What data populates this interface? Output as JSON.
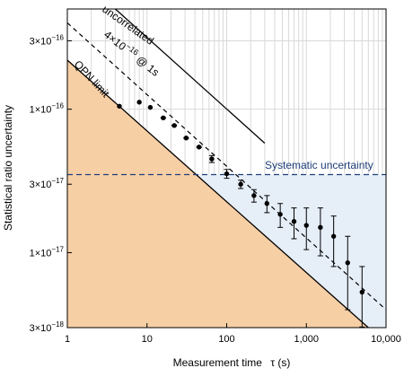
{
  "chart_data": {
    "type": "scatter",
    "x_scale": "log",
    "y_scale": "log",
    "xlim": [
      1,
      10000
    ],
    "ylim": [
      3e-18,
      5e-16
    ],
    "xlabel": "Measurement time",
    "xlabel_symbol": "τ (s)",
    "ylabel": "Statistical ratio uncertainty",
    "x_ticks": [
      {
        "value": 1,
        "label": "1"
      },
      {
        "value": 10,
        "label": "10"
      },
      {
        "value": 100,
        "label": "100"
      },
      {
        "value": 1000,
        "label": "1,000"
      },
      {
        "value": 10000,
        "label": "10,000"
      }
    ],
    "y_ticks": [
      {
        "value": 3e-18,
        "label": "3×10",
        "exp": "−18"
      },
      {
        "value": 1e-17,
        "label": "1×10",
        "exp": "−17"
      },
      {
        "value": 3e-17,
        "label": "3×10",
        "exp": "−17"
      },
      {
        "value": 1e-16,
        "label": "1×10",
        "exp": "−16"
      },
      {
        "value": 3e-16,
        "label": "3×10",
        "exp": "−16"
      }
    ],
    "grid": true,
    "series": [
      {
        "name": "",
        "points": [
          {
            "x": 4.5,
            "y": 1.05e-16,
            "err": 0
          },
          {
            "x": 8,
            "y": 1.12e-16,
            "err": 0
          },
          {
            "x": 11,
            "y": 1.03e-16,
            "err": 0
          },
          {
            "x": 16,
            "y": 8.7e-17,
            "err": 4e-19
          },
          {
            "x": 22,
            "y": 7.7e-17,
            "err": 4e-19
          },
          {
            "x": 31,
            "y": 6.3e-17,
            "err": 5e-19
          },
          {
            "x": 45,
            "y": 5.45e-17,
            "err": 5e-19
          },
          {
            "x": 65,
            "y": 4.5e-17,
            "err": 2.5e-18
          },
          {
            "x": 100,
            "y": 3.55e-17,
            "err": 2.5e-18
          },
          {
            "x": 150,
            "y": 3e-17,
            "err": 2e-18
          },
          {
            "x": 220,
            "y": 2.5e-17,
            "err": 2.5e-18
          },
          {
            "x": 320,
            "y": 2.2e-17,
            "err": 3e-18
          },
          {
            "x": 470,
            "y": 1.85e-17,
            "err": 3.5e-18
          },
          {
            "x": 700,
            "y": 1.65e-17,
            "err": 4e-18
          },
          {
            "x": 1000,
            "y": 1.55e-17,
            "err": 5e-18
          },
          {
            "x": 1500,
            "y": 1.5e-17,
            "err": 5.5e-18
          },
          {
            "x": 2200,
            "y": 1.3e-17,
            "err": 5e-18
          },
          {
            "x": 3300,
            "y": 8.5e-18,
            "err": 4.5e-18
          },
          {
            "x": 5000,
            "y": 5.3e-18,
            "err": 2.7e-18
          }
        ]
      }
    ],
    "lines": {
      "uncorrelated": {
        "label": "uncorrelated",
        "points": [
          [
            4,
            5e-16
          ],
          [
            300,
            5.8e-17
          ]
        ]
      },
      "fit": {
        "label": "4×10⁻¹⁶ @ 1s",
        "points": [
          [
            1,
            4e-16
          ],
          [
            10000,
            4e-18
          ]
        ]
      },
      "qpn": {
        "label": "QPN limit",
        "points": [
          [
            1,
            2.2e-16
          ],
          [
            6000,
            3e-18
          ]
        ]
      },
      "systematic": {
        "label": "Systematic uncertainty",
        "y": 3.5e-17
      }
    },
    "colors": {
      "qpn_fill": "#f7cfa5",
      "systematic_fill": "#e6eef8",
      "systematic_line": "#1f3f7a",
      "points": "#000000",
      "grid": "#d9d9d9"
    }
  }
}
